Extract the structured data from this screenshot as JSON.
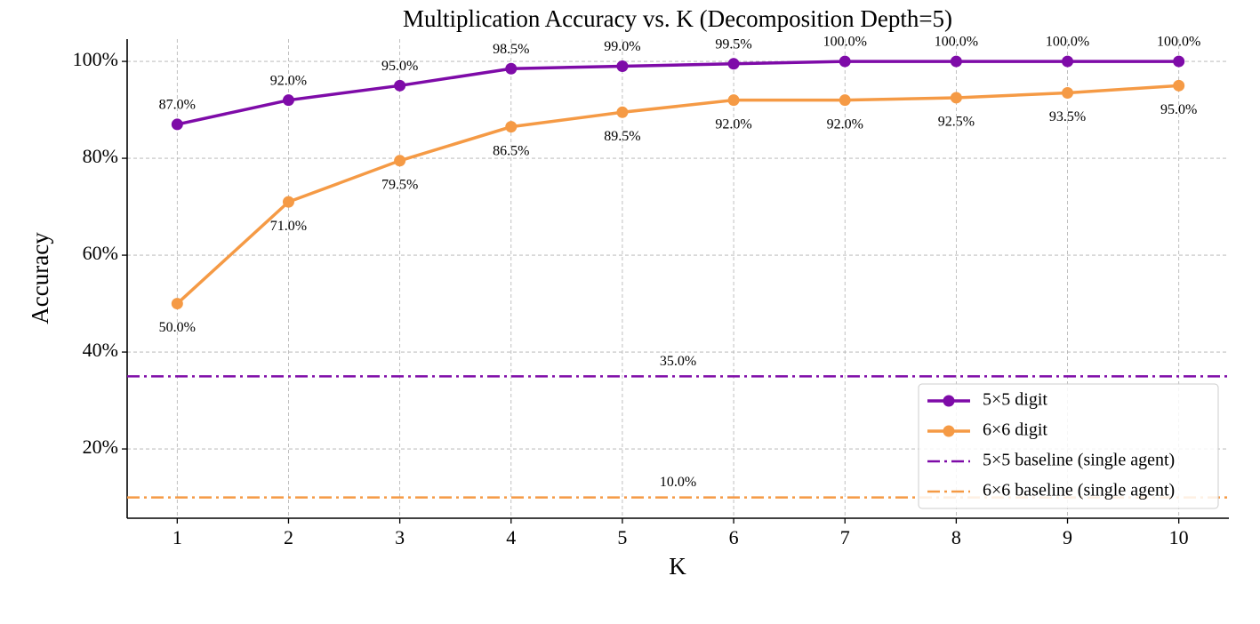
{
  "chart_data": {
    "type": "line",
    "title": "Multiplication Accuracy vs. K (Decomposition Depth=5)",
    "x_label": "K",
    "y_label": "Accuracy",
    "x": [
      1,
      2,
      3,
      4,
      5,
      6,
      7,
      8,
      9,
      10
    ],
    "series": [
      {
        "name": "5×5 digit",
        "color": "#7e0ba8",
        "values": [
          87.0,
          92.0,
          95.0,
          98.5,
          99.0,
          99.5,
          100.0,
          100.0,
          100.0,
          100.0
        ],
        "value_labels": [
          "87.0%",
          "92.0%",
          "95.0%",
          "98.5%",
          "99.0%",
          "99.5%",
          "100.0%",
          "100.0%",
          "100.0%",
          "100.0%"
        ]
      },
      {
        "name": "6×6 digit",
        "color": "#f59a45",
        "values": [
          50.0,
          71.0,
          79.5,
          86.5,
          89.5,
          92.0,
          92.0,
          92.5,
          93.5,
          95.0
        ],
        "value_labels": [
          "50.0%",
          "71.0%",
          "79.5%",
          "86.5%",
          "89.5%",
          "92.0%",
          "92.0%",
          "92.5%",
          "93.5%",
          "95.0%"
        ]
      }
    ],
    "baselines": [
      {
        "name": "5×5 baseline (single agent)",
        "color": "#7e0ba8",
        "value": 35.0,
        "value_label": "35.0%"
      },
      {
        "name": "6×6 baseline (single agent)",
        "color": "#f59a45",
        "value": 10.0,
        "value_label": "10.0%"
      }
    ],
    "xlim": [
      0.55,
      10.45
    ],
    "ylim": [
      5.7,
      104.6
    ],
    "xticks": [
      1,
      2,
      3,
      4,
      5,
      6,
      7,
      8,
      9,
      10
    ],
    "yticks": [
      {
        "value": 20,
        "label": "20%"
      },
      {
        "value": 40,
        "label": "40%"
      },
      {
        "value": 60,
        "label": "60%"
      },
      {
        "value": 80,
        "label": "80%"
      },
      {
        "value": 100,
        "label": "100%"
      }
    ],
    "grid": true,
    "legend": "lower right"
  }
}
